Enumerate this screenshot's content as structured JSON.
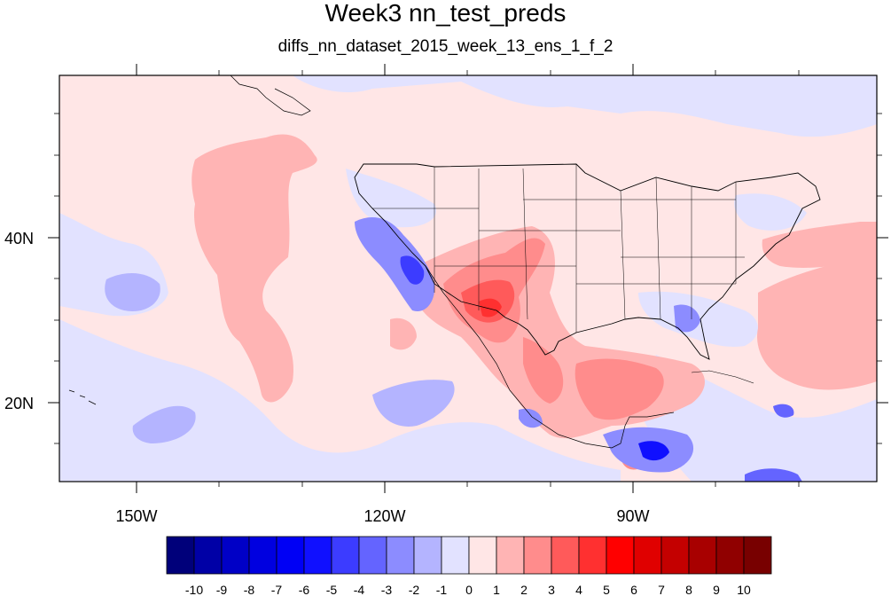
{
  "title": "Week3 nn_test_preds",
  "subtitle": "diffs_nn_dataset_2015_week_13_ens_1_f_2",
  "axes": {
    "x_ticks": [
      "150W",
      "120W",
      "90W"
    ],
    "y_ticks": [
      "40N",
      "20N"
    ]
  },
  "colorbar": {
    "colors": [
      "#00007a",
      "#0000a6",
      "#0000c6",
      "#0000e0",
      "#0000f5",
      "#1010ff",
      "#3c3cff",
      "#6464ff",
      "#8c8cff",
      "#b4b4ff",
      "#e2e2ff",
      "#ffe6e6",
      "#ffb4b4",
      "#ff8c8c",
      "#ff5a5a",
      "#ff3030",
      "#ff0000",
      "#e00000",
      "#c40000",
      "#a80000",
      "#900000",
      "#780000"
    ],
    "labels": [
      "-10",
      "-9",
      "-8",
      "-7",
      "-6",
      "-5",
      "-4",
      "-3",
      "-2",
      "-1",
      "0",
      "1",
      "2",
      "3",
      "4",
      "5",
      "6",
      "7",
      "8",
      "9",
      "10"
    ]
  },
  "map": {
    "region": "North America and eastern Pacific",
    "lon_range": [
      -160,
      -60
    ],
    "lat_range": [
      11,
      60
    ],
    "background": "#ffe6e6"
  }
}
